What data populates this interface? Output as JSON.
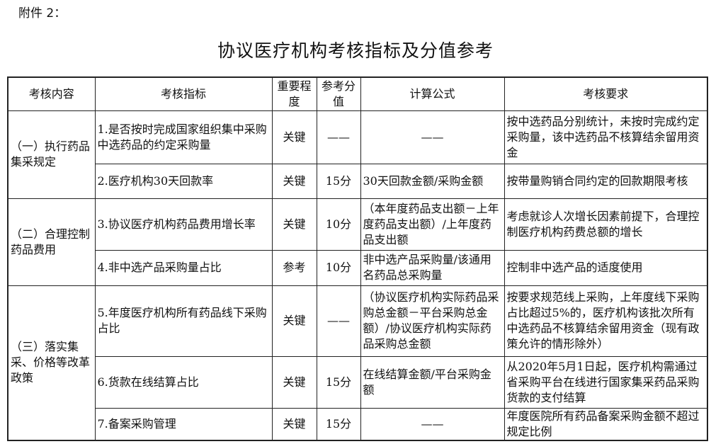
{
  "attachment_label": "附件 2：",
  "title": "协议医疗机构考核指标及分值参考",
  "table": {
    "headers": [
      "考核内容",
      "考核指标",
      "重要程度",
      "参考分值",
      "计算公式",
      "考核要求"
    ],
    "groups": [
      {
        "content": "（一）执行药品集采规定"
      },
      {
        "content": "（二）合理控制药品费用"
      },
      {
        "content": "（三）落实集采、价格等改革政策"
      }
    ],
    "rows": [
      {
        "indicator": "1.是否按时完成国家组织集中采购中选药品的约定采购量",
        "importance": "关键",
        "score": "——",
        "formula": "——",
        "requirement": "按中选药品分别统计，未按时完成约定采购量，该中选药品不核算结余留用资金"
      },
      {
        "indicator": "2.医疗机构30天回款率",
        "importance": "关键",
        "score": "15分",
        "formula": "30天回款金额/采购金额",
        "requirement": "按带量购销合同约定的回款期限考核"
      },
      {
        "indicator": "3.协议医疗机构药品费用增长率",
        "importance": "关键",
        "score": "10分",
        "formula": "（本年度药品支出额－上年度药品支出额）/上年度药品支出额",
        "requirement": "考虑就诊人次增长因素前提下，合理控制医疗机构药费总额的增长"
      },
      {
        "indicator": "4.非中选产品采购量占比",
        "importance": "参考",
        "score": "10分",
        "formula": "非中选产品采购量/该通用名药品总采购量",
        "requirement": "控制非中选产品的适度使用"
      },
      {
        "indicator": "5.年度医疗机构所有药品线下采购占比",
        "importance": "关键",
        "score": "——",
        "formula": "（协议医疗机构实际药品采购总金额－平台采购总金额）/协议医疗机构实际药品采购总金额",
        "requirement": "按要求规范线上采购，上年度线下采购占比超过5%的，医疗机构该批次所有中选药品不核算结余留用资金（现有政策允许的情形除外）"
      },
      {
        "indicator": "6.货款在线结算占比",
        "importance": "关键",
        "score": "15分",
        "formula": "在线结算金额/平台采购金额",
        "requirement": "从2020年5月1日起，医疗机构需通过省采购平台在线进行国家集采药品采购货款的支付结算"
      },
      {
        "indicator": "7.备案采购管理",
        "importance": "关键",
        "score": "15分",
        "formula": "——",
        "requirement": "年度医院所有药品备案采购金额不超过规定比例"
      }
    ]
  }
}
